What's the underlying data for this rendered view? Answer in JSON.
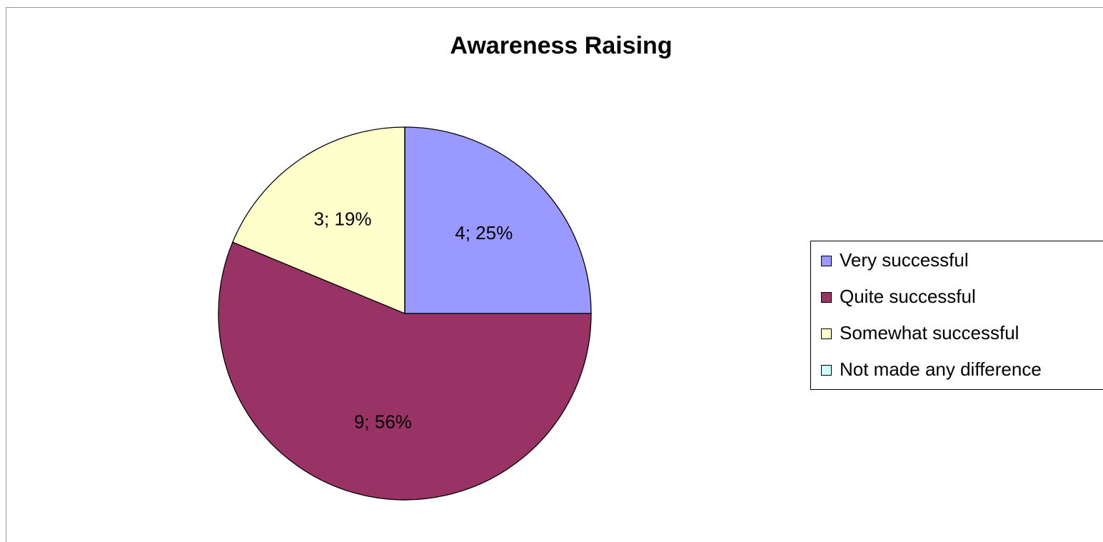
{
  "chart_data": {
    "type": "pie",
    "title": "Awareness Raising",
    "categories": [
      "Very successful",
      "Quite successful",
      "Somewhat successful",
      "Not made any difference"
    ],
    "values": [
      4,
      9,
      3,
      0
    ],
    "value_labels": [
      "4; 25%",
      "9; 56%",
      "3; 19%",
      null
    ],
    "colors": [
      "#9999ff",
      "#993366",
      "#ffffcc",
      "#ccffff"
    ],
    "legend": "right"
  }
}
